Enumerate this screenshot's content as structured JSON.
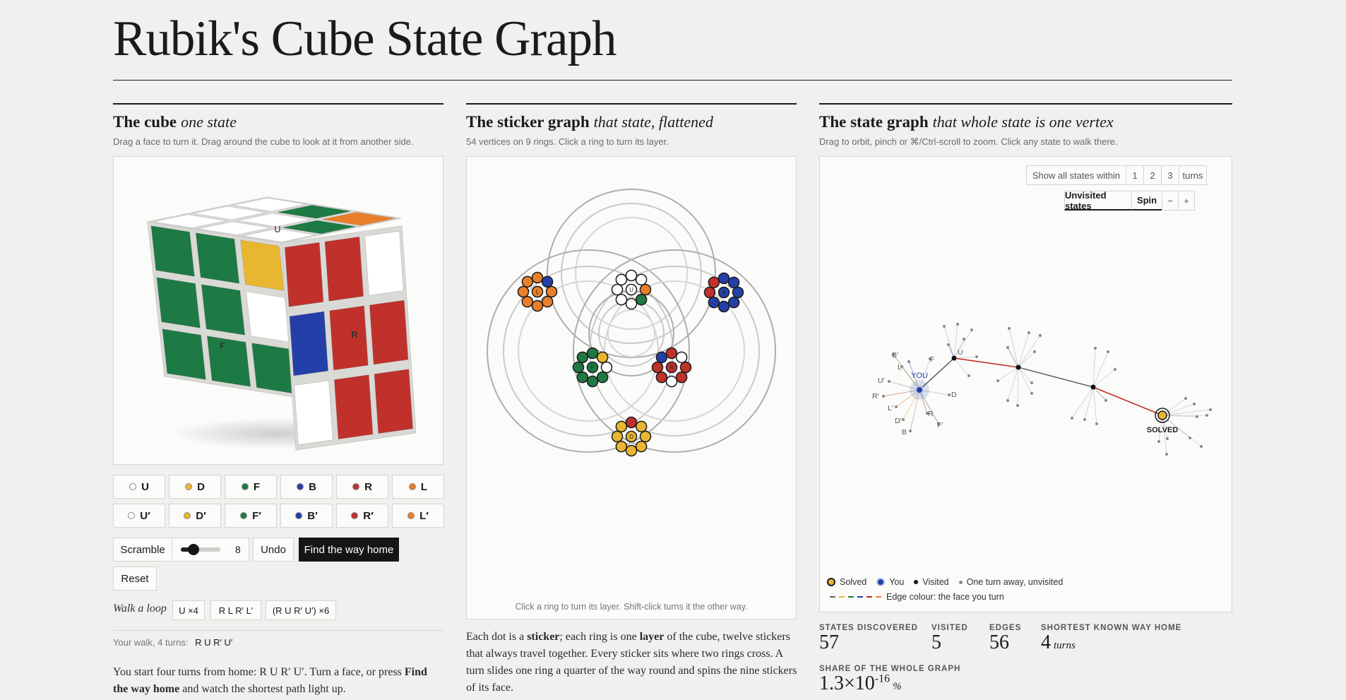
{
  "title": "Rubik's Cube State Graph",
  "colors": {
    "white": "#ffffff",
    "yellow": "#e8b630",
    "green": "#1e7a44",
    "blue": "#2440a8",
    "red": "#c0312b",
    "orange": "#ea7f2a"
  },
  "cube_panel": {
    "heading": "The cube",
    "subheading": "one state",
    "description": "Drag a face to turn it. Drag around the cube to look at it from another side.",
    "face_labels": {
      "up": "U",
      "front": "F",
      "right": "R"
    },
    "moves_row1": [
      {
        "label": "U",
        "color": "#ffffff"
      },
      {
        "label": "D",
        "color": "#e8b630"
      },
      {
        "label": "F",
        "color": "#1e7a44"
      },
      {
        "label": "B",
        "color": "#2440a8"
      },
      {
        "label": "R",
        "color": "#c0312b"
      },
      {
        "label": "L",
        "color": "#ea7f2a"
      }
    ],
    "moves_row2": [
      {
        "label": "U′",
        "color": "#ffffff"
      },
      {
        "label": "D′",
        "color": "#e8b630"
      },
      {
        "label": "F′",
        "color": "#1e7a44"
      },
      {
        "label": "B′",
        "color": "#2440a8"
      },
      {
        "label": "R′",
        "color": "#c0312b"
      },
      {
        "label": "L′",
        "color": "#ea7f2a"
      }
    ],
    "scramble_label": "Scramble",
    "scramble_value": "8",
    "undo_label": "Undo",
    "find_home_label": "Find the way home",
    "reset_label": "Reset",
    "loop_label": "Walk a loop",
    "loops": [
      "U ×4",
      "R L R′ L′",
      "(R U R′ U′) ×6"
    ],
    "walk_label": "Your walk, 4 turns:",
    "walk_moves": "R U R′ U′",
    "para_a": "You start four turns from home: R U R′ U′. Turn a face, or press ",
    "para_b": "Find the way home",
    "para_c": " and watch the shortest path light up."
  },
  "sticker_panel": {
    "heading": "The sticker graph",
    "subheading": "that state, flattened",
    "description": "54 vertices on 9 rings. Click a ring to turn its layer.",
    "center_labels": {
      "U": "U",
      "L": "L",
      "B": "B",
      "F": "F",
      "R": "R",
      "D": "D"
    },
    "footer": "Click a ring to turn its layer. Shift-click turns it the other way.",
    "para_a": "Each dot is a ",
    "para_b": "sticker",
    "para_c": "; each ring is one ",
    "para_d": "layer",
    "para_e": " of the cube, twelve stickers that always travel together. Every sticker sits where two rings cross. A turn slides one ring a quarter of the way round and spins the nine stickers of its face."
  },
  "state_panel": {
    "heading": "The state graph",
    "subheading": "that whole state is one vertex",
    "description": "Drag to orbit, pinch or ⌘/Ctrl-scroll to zoom. Click any state to walk there.",
    "within_label": "Show all states within",
    "within_options": [
      "1",
      "2",
      "3"
    ],
    "turns_label": "turns",
    "unvisited_label": "Unvisited states",
    "spin_label": "Spin",
    "zoom_out": "−",
    "zoom_in": "+",
    "you_label": "YOU",
    "solved_label": "SOLVED",
    "move_labels": [
      "B′",
      "L",
      "F",
      "U",
      "U′",
      "R′",
      "L′",
      "D′",
      "B",
      "R",
      "F′",
      "D"
    ],
    "legend_solved": "Solved",
    "legend_you": "You",
    "legend_visited": "Visited",
    "legend_unvisited": "One turn away, unvisited",
    "legend_edge": "Edge colour: the face you turn"
  },
  "stats": {
    "discovered_label": "STATES DISCOVERED",
    "discovered": "57",
    "visited_label": "VISITED",
    "visited": "5",
    "edges_label": "EDGES",
    "edges": "56",
    "home_label": "SHORTEST KNOWN WAY HOME",
    "home": "4",
    "home_unit": "turns",
    "share_label": "SHARE OF THE WHOLE GRAPH",
    "share_mantissa": "1.3×10",
    "share_exp": "-16",
    "share_unit": "%"
  }
}
